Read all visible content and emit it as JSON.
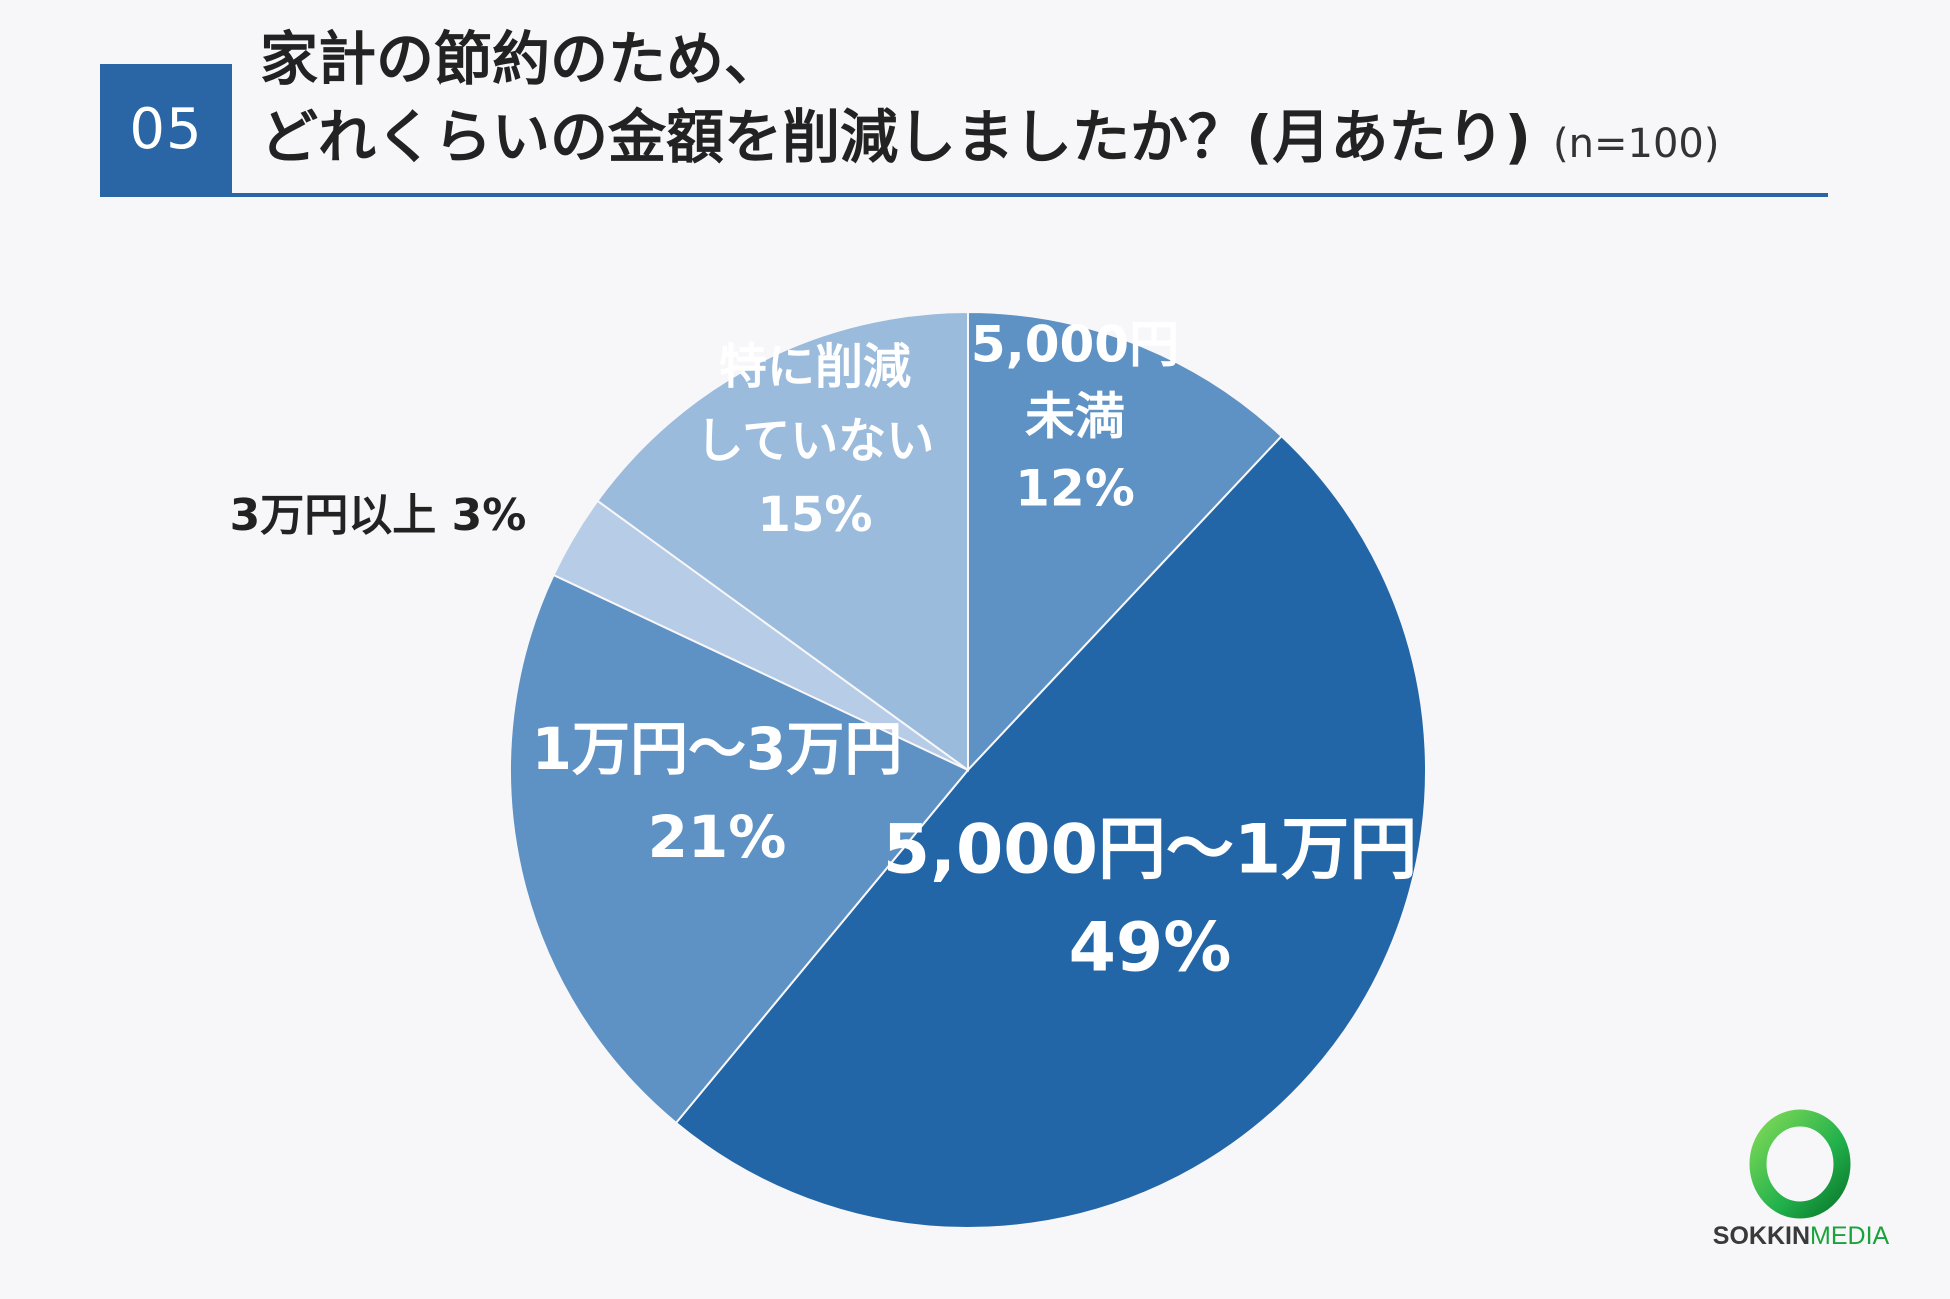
{
  "header": {
    "number": "05",
    "title_line1": "家計の節約のため、",
    "title_line2": "どれくらいの金額を削減しましたか？(月あたり)",
    "sample_size": "(n=100)"
  },
  "chart_data": {
    "type": "pie",
    "title": "家計の節約のため、どれくらいの金額を削減しましたか？(月あたり)",
    "start": "12 o'clock, clockwise",
    "slices": [
      {
        "label": "5,000円未満",
        "value": 12,
        "percent_label": "12%",
        "color": "#5e91c4"
      },
      {
        "label": "5,000円〜1万円",
        "value": 49,
        "percent_label": "49%",
        "color": "#2366a7"
      },
      {
        "label": "1万円〜3万円",
        "value": 21,
        "percent_label": "21%",
        "color": "#5e91c4"
      },
      {
        "label": "3万円以上",
        "value": 3,
        "percent_label": "3%",
        "color": "#b7cce6"
      },
      {
        "label": "特に削減していない",
        "value": 15,
        "percent_label": "15%",
        "color": "#9abbdc"
      }
    ],
    "slice_label_lines": [
      [
        "5,000円",
        "未満",
        "12%"
      ],
      [
        "5,000円〜1万円",
        "49%"
      ],
      [
        "1万円〜3万円",
        "21%"
      ],
      [
        "3万円以上 3%"
      ],
      [
        "特に削減",
        "していない",
        "15%"
      ]
    ]
  },
  "logo": {
    "brand": "SOKKIN",
    "brand_suffix": "MEDIA",
    "ring_color": "#22b14c"
  }
}
